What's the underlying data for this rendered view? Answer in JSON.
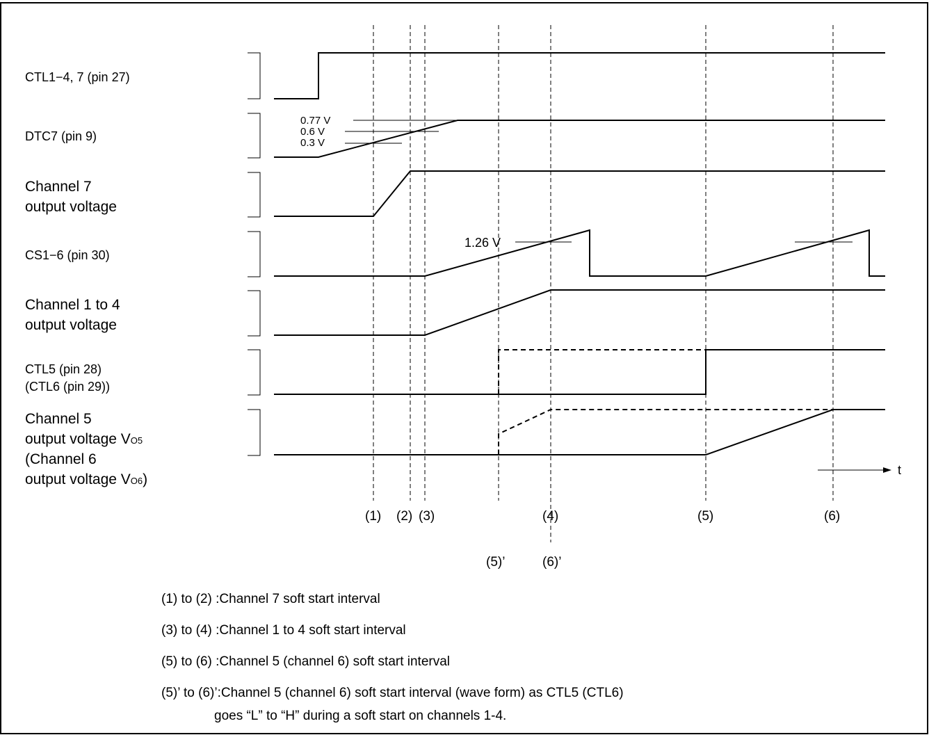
{
  "signals": {
    "ctl14_7": "CTL1−4, 7 (pin 27)",
    "dtc7": "DTC7 (pin 9)",
    "ch7": [
      "Channel 7",
      "output voltage"
    ],
    "cs16": "CS1−6 (pin 30)",
    "ch14": [
      "Channel 1 to 4",
      "output voltage"
    ],
    "ctl5": [
      "CTL5 (pin 28)",
      "(CTL6 (pin 29))"
    ],
    "ch5": [
      "Channel 5",
      "output voltage V",
      "(Channel 6",
      "output voltage V",
      ")"
    ],
    "ch5_sub": "O5",
    "ch6_sub": "O6"
  },
  "annotations": {
    "v077": "0.77 V",
    "v06": "0.6 V",
    "v03": "0.3 V",
    "v126": "1.26 V",
    "time": "t"
  },
  "markers": {
    "m1": "(1)",
    "m2": "(2)",
    "m3": "(3)",
    "m4": "(4)",
    "m5": "(5)",
    "m6": "(6)",
    "m5p": "(5)’",
    "m6p": "(6)’"
  },
  "notes": [
    "(1) to (2) :Channel 7 soft start interval",
    "(3) to (4) :Channel 1 to 4 soft start interval",
    "(5) to (6) :Channel 5 (channel 6) soft start interval",
    "(5)’ to (6)’:Channel 5 (channel 6) soft start interval (wave form) as CTL5 (CTL6)",
    "goes “L” to “H” during a soft start on channels 1-4."
  ]
}
